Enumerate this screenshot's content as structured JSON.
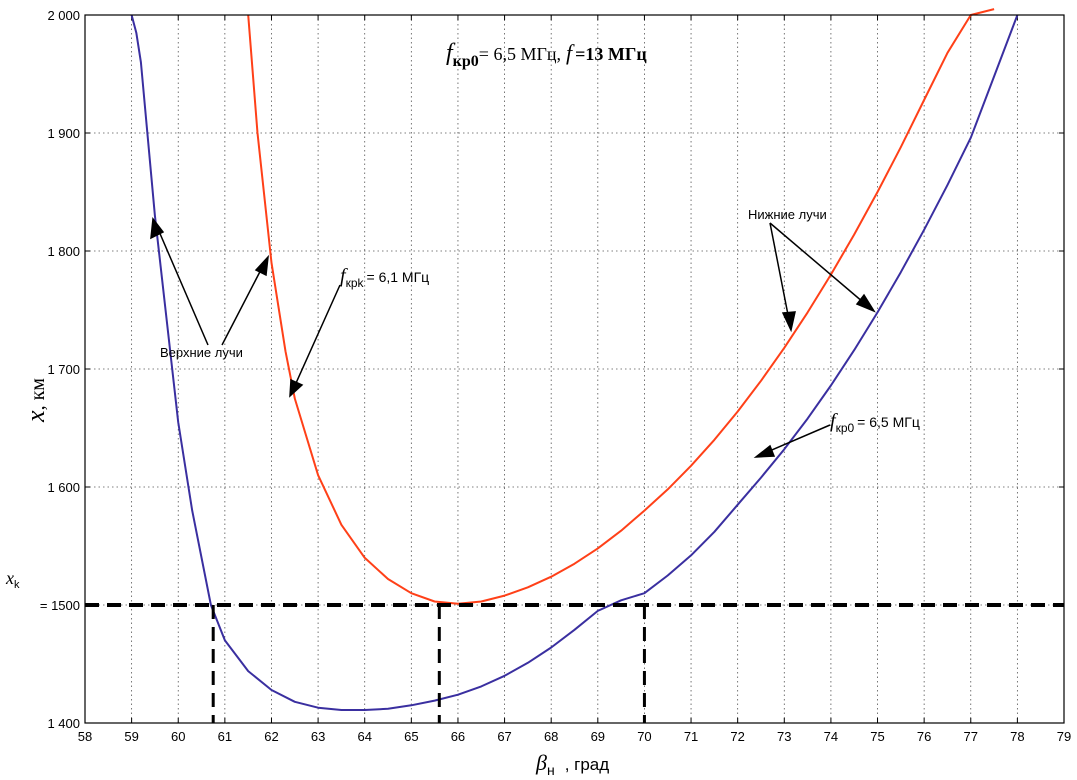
{
  "chart_data": {
    "type": "line",
    "title": {
      "f_symbol": "f",
      "f_sub": "кр0",
      "f_value": "= 6,5 МГц,",
      "f2_symbol": "f",
      "f2_value": "=13 МГц"
    },
    "xlabel": {
      "symbol": "β",
      "sub": "н",
      "unit": ", град"
    },
    "ylabel": {
      "symbol": "x",
      "unit": ", км"
    },
    "xlim": [
      58,
      79
    ],
    "ylim": [
      1400,
      2000
    ],
    "x_ticks": [
      "58",
      "59",
      "60",
      "61",
      "62",
      "63",
      "64",
      "65",
      "66",
      "67",
      "68",
      "69",
      "70",
      "71",
      "72",
      "73",
      "74",
      "75",
      "76",
      "77",
      "78",
      "79"
    ],
    "y_ticks": [
      {
        "value": 1400,
        "label": "1 400"
      },
      {
        "value": 1500,
        "label": "= 1500"
      },
      {
        "value": 1600,
        "label": "1 600"
      },
      {
        "value": 1700,
        "label": "1 700"
      },
      {
        "value": 1800,
        "label": "1 800"
      },
      {
        "value": 1900,
        "label": "1 900"
      },
      {
        "value": 2000,
        "label": "2 000"
      }
    ],
    "xk_label": {
      "symbol": "x",
      "sub": "k"
    },
    "grid": true,
    "series": [
      {
        "name": "fкр0 = 6,5 МГц",
        "color": "#3a2fa0",
        "x": [
          59.0,
          59.1,
          59.2,
          59.5,
          60.0,
          60.3,
          60.7,
          61.0,
          61.5,
          62.0,
          62.5,
          63.0,
          63.5,
          64.0,
          64.5,
          65.0,
          65.5,
          66.0,
          66.5,
          67.0,
          67.5,
          68.0,
          68.5,
          69.0,
          69.5,
          70.0,
          70.5,
          71.0,
          71.5,
          72.0,
          72.5,
          73.0,
          73.5,
          74.0,
          74.5,
          75.0,
          75.5,
          76.0,
          76.5,
          77.0,
          77.5,
          78.0
        ],
        "y": [
          2000,
          1985,
          1960,
          1830,
          1655,
          1580,
          1500,
          1470,
          1444,
          1428,
          1418,
          1413,
          1411,
          1411,
          1412,
          1415,
          1419,
          1424,
          1431,
          1440,
          1451,
          1464,
          1479,
          1495,
          1504,
          1510,
          1525,
          1542,
          1562,
          1585,
          1608,
          1632,
          1658,
          1686,
          1716,
          1748,
          1782,
          1818,
          1856,
          1896,
          1948,
          2000
        ]
      },
      {
        "name": "fкрk = 6,1 МГц",
        "color": "#ff4018",
        "x": [
          61.5,
          61.7,
          62.0,
          62.3,
          62.5,
          63.0,
          63.5,
          64.0,
          64.5,
          65.0,
          65.5,
          66.0,
          66.5,
          67.0,
          67.5,
          68.0,
          68.5,
          69.0,
          69.5,
          70.0,
          70.5,
          71.0,
          71.5,
          72.0,
          72.5,
          73.0,
          73.5,
          74.0,
          74.5,
          75.0,
          75.5,
          76.0,
          76.5,
          77.0,
          77.5
        ],
        "y": [
          2000,
          1900,
          1790,
          1715,
          1675,
          1610,
          1568,
          1540,
          1522,
          1510,
          1503,
          1501,
          1503,
          1508,
          1515,
          1524,
          1535,
          1548,
          1563,
          1580,
          1598,
          1618,
          1640,
          1664,
          1690,
          1718,
          1748,
          1780,
          1814,
          1850,
          1888,
          1928,
          1968,
          2000,
          2035
        ]
      }
    ],
    "reference_line": {
      "y": 1500
    },
    "drop_lines": [
      60.75,
      65.6,
      70.0
    ],
    "annotations": {
      "upper_rays": "Верхние лучи",
      "lower_rays": "Нижние лучи",
      "fkrk": {
        "symbol": "f",
        "sub": "крk",
        "value": "= 6,1 МГц"
      },
      "fkr0": {
        "symbol": "f",
        "sub": "кр0",
        "value": "= 6,5   МГц"
      }
    }
  }
}
